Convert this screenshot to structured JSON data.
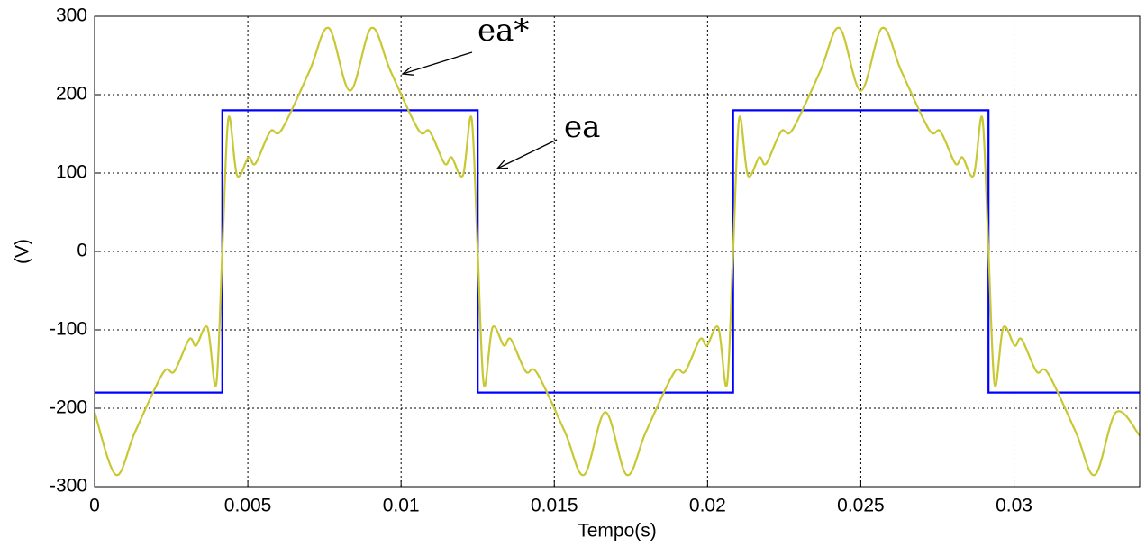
{
  "chart_data": {
    "type": "line",
    "xlabel": "Tempo(s)",
    "ylabel": "(V)",
    "xlim": [
      0,
      0.0341
    ],
    "ylim": [
      -300,
      300
    ],
    "xticks": [
      0,
      0.005,
      0.01,
      0.015,
      0.02,
      0.025,
      0.03
    ],
    "yticks": [
      -300,
      -200,
      -100,
      0,
      100,
      200,
      300
    ],
    "grid": true,
    "annotations": [
      "ea*",
      "ea"
    ],
    "series": [
      {
        "color": "#0000ff",
        "x": [
          0,
          0.004167,
          0.004167,
          0.0125,
          0.0125,
          0.020833,
          0.020833,
          0.029167,
          0.029167,
          0.0341
        ],
        "values": [
          -180,
          -180,
          180,
          180,
          -180,
          -180,
          180,
          180,
          -180,
          -180
        ]
      },
      {
        "color": "#c8c832",
        "x": [
          0,
          0.000697,
          0.001323,
          0.002233,
          0.002602,
          0.003087,
          0.003314,
          0.003684,
          0.003967,
          0.004167,
          0.004367,
          0.00465,
          0.00502,
          0.005247,
          0.005732,
          0.006101,
          0.007011,
          0.007637,
          0.008334,
          0.009031,
          0.009657,
          0.010567,
          0.010936,
          0.011421,
          0.011648,
          0.012017,
          0.0123,
          0.0125,
          0.0127,
          0.012983,
          0.013353,
          0.01358,
          0.014065,
          0.014434,
          0.015344,
          0.01597,
          0.016667,
          0.017364,
          0.01799,
          0.0189,
          0.019269,
          0.019754,
          0.019981,
          0.02035,
          0.020633,
          0.020833,
          0.021033,
          0.021316,
          0.021686,
          0.021913,
          0.022398,
          0.022767,
          0.023677,
          0.024303,
          0.025,
          0.025697,
          0.026323,
          0.027233,
          0.027602,
          0.028087,
          0.028314,
          0.028683,
          0.028966,
          0.029167,
          0.029367,
          0.02965,
          0.03002,
          0.030247,
          0.030732,
          0.031101,
          0.032011,
          0.032637,
          0.033334,
          0.0341
        ],
        "values": [
          -205,
          -285,
          -230,
          -155,
          -153,
          -112,
          -120,
          -97,
          -170,
          0,
          170,
          97,
          120,
          112,
          153,
          155,
          230,
          285,
          205,
          285,
          230,
          155,
          153,
          112,
          120,
          97,
          170,
          0,
          -170,
          -97,
          -120,
          -112,
          -153,
          -155,
          -230,
          -285,
          -205,
          -285,
          -230,
          -155,
          -153,
          -112,
          -120,
          -97,
          -170,
          0,
          170,
          97,
          120,
          112,
          153,
          155,
          230,
          285,
          205,
          285,
          230,
          155,
          153,
          112,
          120,
          97,
          170,
          0,
          -170,
          -97,
          -120,
          -112,
          -153,
          -155,
          -230,
          -285,
          -205,
          -235
        ]
      }
    ]
  }
}
